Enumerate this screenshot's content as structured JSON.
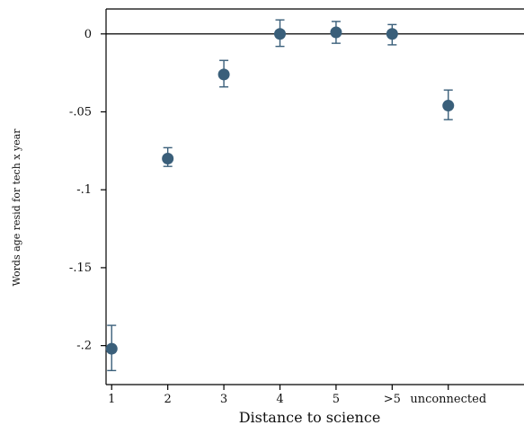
{
  "chart_data": {
    "type": "scatter",
    "title": "",
    "xlabel": "Distance to science",
    "ylabel": "Words age resid for tech x year",
    "categories": [
      "1",
      "2",
      "3",
      "4",
      "5",
      ">5",
      "unconnected"
    ],
    "y_ticks": [
      {
        "value": 0,
        "label": "0"
      },
      {
        "value": -0.05,
        "label": "-.05"
      },
      {
        "value": -0.1,
        "label": "-.1"
      },
      {
        "value": -0.15,
        "label": "-.15"
      },
      {
        "value": -0.2,
        "label": "-.2"
      }
    ],
    "ylim": [
      -0.225,
      0.016
    ],
    "xlim": [
      0.9,
      8.35
    ],
    "reference_line_y": 0,
    "grid": false,
    "colors": {
      "marker": "#3a5f7a",
      "errorbar": "#3a5f7a",
      "axis": "#000000"
    },
    "points": [
      {
        "x": 1,
        "y": -0.202,
        "ci_low": -0.216,
        "ci_high": -0.187
      },
      {
        "x": 2,
        "y": -0.08,
        "ci_low": -0.085,
        "ci_high": -0.073
      },
      {
        "x": 3,
        "y": -0.026,
        "ci_low": -0.034,
        "ci_high": -0.017
      },
      {
        "x": 4,
        "y": 0.0,
        "ci_low": -0.008,
        "ci_high": 0.009
      },
      {
        "x": 5,
        "y": 0.001,
        "ci_low": -0.006,
        "ci_high": 0.008
      },
      {
        "x": 6,
        "y": 0.0,
        "ci_low": -0.007,
        "ci_high": 0.006
      },
      {
        "x": 7,
        "y": -0.046,
        "ci_low": -0.055,
        "ci_high": -0.036
      }
    ]
  }
}
